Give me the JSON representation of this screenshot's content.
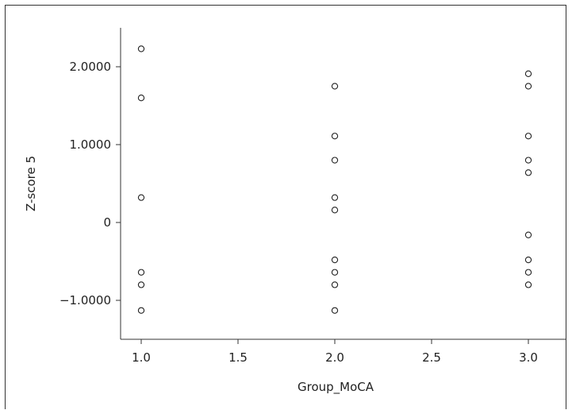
{
  "chart_data": {
    "type": "scatter",
    "title": "",
    "xlabel": "Group_MoCA",
    "ylabel": "Z-score 5",
    "xlim": [
      0.88,
      3.12
    ],
    "ylim": [
      -1.5,
      2.5
    ],
    "x_ticks": [
      1.0,
      1.5,
      2.0,
      2.5,
      3.0
    ],
    "x_tick_labels": [
      "1.0",
      "1.5",
      "2.0",
      "2.5",
      "3.0"
    ],
    "y_ticks": [
      2.0,
      1.0,
      0.0,
      -1.0
    ],
    "y_tick_labels": [
      "2.0000",
      "1.0000",
      "0",
      "−1.0000"
    ],
    "grid": false,
    "marker": "open-circle",
    "points": [
      {
        "x": 1.0,
        "y": 2.23
      },
      {
        "x": 1.0,
        "y": 1.6
      },
      {
        "x": 1.0,
        "y": 0.32
      },
      {
        "x": 1.0,
        "y": -0.64
      },
      {
        "x": 1.0,
        "y": -0.8
      },
      {
        "x": 1.0,
        "y": -1.13
      },
      {
        "x": 2.0,
        "y": 1.75
      },
      {
        "x": 2.0,
        "y": 1.11
      },
      {
        "x": 2.0,
        "y": 0.8
      },
      {
        "x": 2.0,
        "y": 0.32
      },
      {
        "x": 2.0,
        "y": 0.16
      },
      {
        "x": 2.0,
        "y": -0.48
      },
      {
        "x": 2.0,
        "y": -0.64
      },
      {
        "x": 2.0,
        "y": -0.8
      },
      {
        "x": 2.0,
        "y": -1.13
      },
      {
        "x": 3.0,
        "y": 1.91
      },
      {
        "x": 3.0,
        "y": 1.75
      },
      {
        "x": 3.0,
        "y": 1.11
      },
      {
        "x": 3.0,
        "y": 0.8
      },
      {
        "x": 3.0,
        "y": 0.64
      },
      {
        "x": 3.0,
        "y": -0.16
      },
      {
        "x": 3.0,
        "y": -0.48
      },
      {
        "x": 3.0,
        "y": -0.64
      },
      {
        "x": 3.0,
        "y": -0.8
      }
    ]
  }
}
